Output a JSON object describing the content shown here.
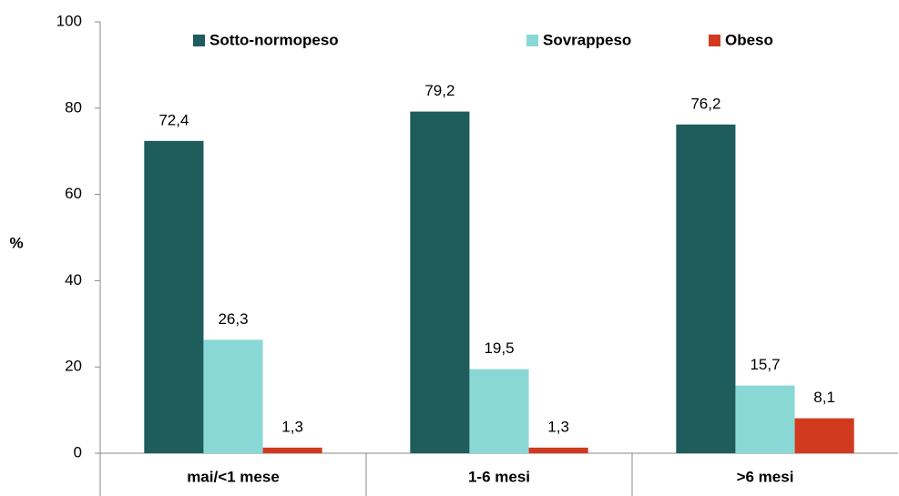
{
  "chart_data": {
    "type": "bar",
    "y_label": "%",
    "categories": [
      "mai/<1 mese",
      "1-6 mesi",
      ">6 mesi"
    ],
    "series": [
      {
        "name": "Sotto-normopeso",
        "color": "#1f5c5c",
        "values": [
          72.4,
          79.2,
          76.2
        ],
        "value_labels": [
          "72,4",
          "79,2",
          "76,2"
        ]
      },
      {
        "name": "Sovrappeso",
        "color": "#8ad8d6",
        "values": [
          26.3,
          19.5,
          15.7
        ],
        "value_labels": [
          "26,3",
          "19,5",
          "15,7"
        ]
      },
      {
        "name": "Obeso",
        "color": "#d13a1e",
        "values": [
          1.3,
          1.3,
          8.1
        ],
        "value_labels": [
          "1,3",
          "1,3",
          "8,1"
        ]
      }
    ],
    "ylim": [
      0,
      100
    ],
    "yticks": [
      0,
      20,
      40,
      60,
      80,
      100
    ],
    "legend": "top"
  }
}
